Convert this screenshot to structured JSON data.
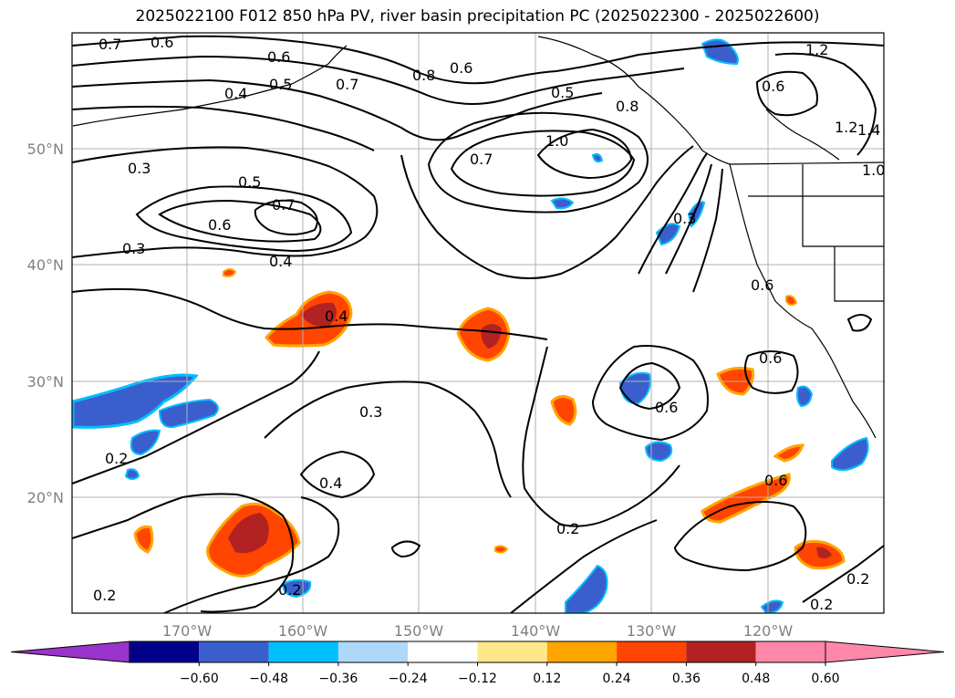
{
  "title": "2025022100 F012 850 hPa PV, river basin precipitation PC (2025022300 - 2025022600)",
  "lat_labels": [
    "50°N",
    "40°N",
    "30°N",
    "20°N"
  ],
  "lon_labels": [
    "170°W",
    "160°W",
    "150°W",
    "140°W",
    "130°W",
    "120°W"
  ],
  "colorbar": {
    "ticks": [
      "−0.60",
      "−0.48",
      "−0.36",
      "−0.24",
      "−0.12",
      "0.12",
      "0.24",
      "0.36",
      "0.48",
      "0.60"
    ],
    "colors": [
      "#9a33cc",
      "#00008b",
      "#3a5fcd",
      "#00bfff",
      "#add8f7",
      "#ffffff",
      "#ffe88a",
      "#ffa500",
      "#ff4500",
      "#b22222",
      "#ff88aa",
      "#ff88aa"
    ]
  },
  "contour_labels": [
    "0.7",
    "0.6",
    "0.6",
    "0.5",
    "0.4",
    "0.7",
    "0.8",
    "0.6",
    "0.5",
    "1.2",
    "0.6",
    "1.2",
    "1.4",
    "0.3",
    "0.5",
    "0.7",
    "0.6",
    "1.0",
    "0.7",
    "0.8",
    "1.0",
    "0.3",
    "0.4",
    "0.3",
    "0.6",
    "0.4",
    "0.3",
    "0.6",
    "0.6",
    "0.2",
    "0.4",
    "0.6",
    "0.2",
    "0.2",
    "0.2",
    "0.2",
    "0.2"
  ],
  "map": {
    "region": "North Pacific / western North America",
    "fields": [
      "850 hPa PV contours",
      "river basin precipitation PC (shaded)"
    ]
  }
}
